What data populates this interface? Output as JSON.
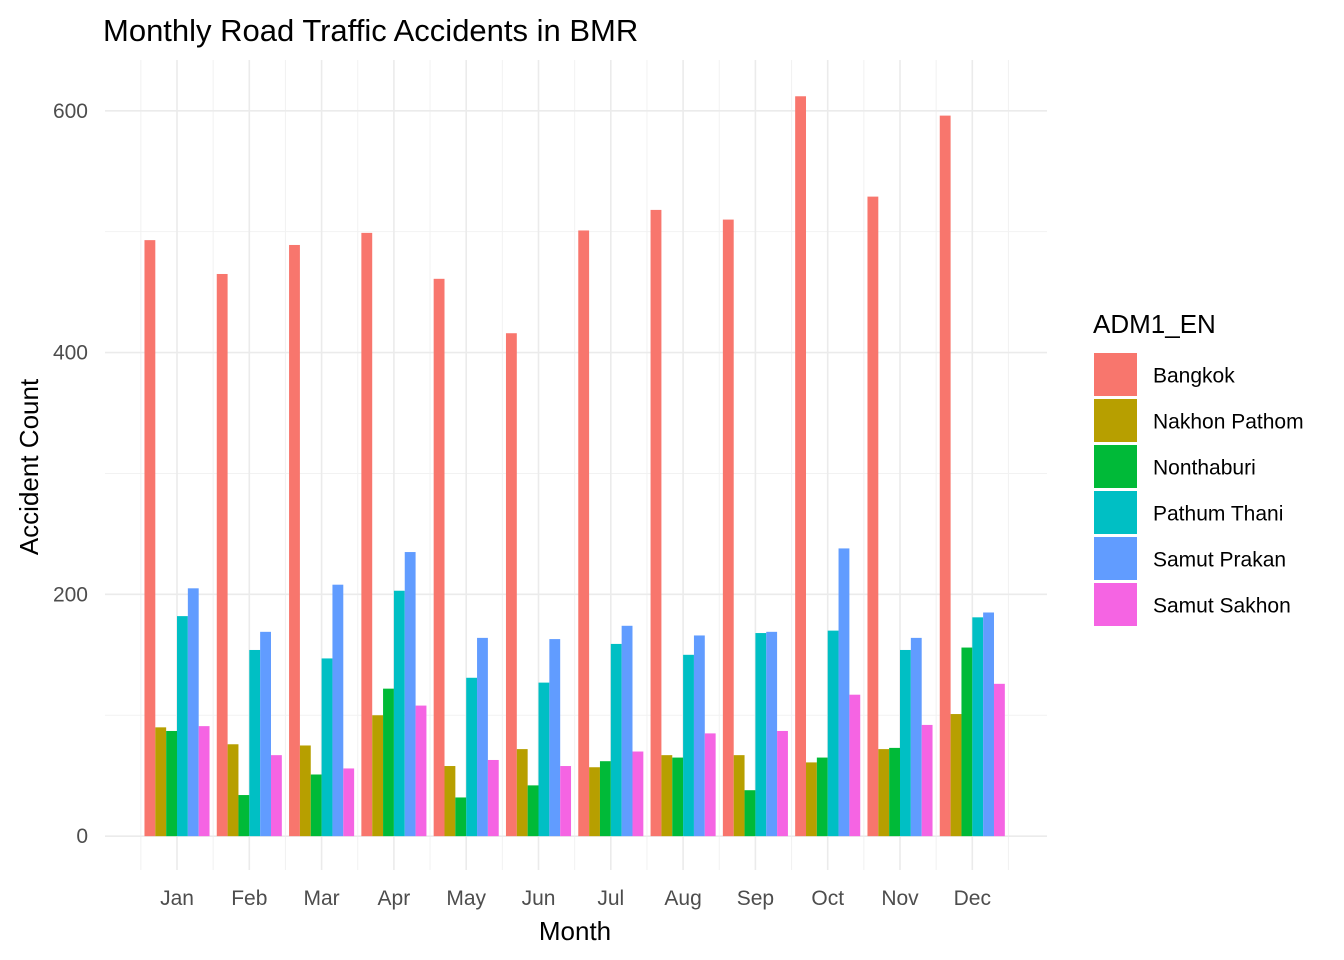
{
  "chart_data": {
    "type": "bar",
    "title": "Monthly Road Traffic Accidents in BMR",
    "xlabel": "Month",
    "ylabel": "Accident Count",
    "ylim": [
      -28,
      642
    ],
    "yticks": [
      0,
      200,
      400,
      600
    ],
    "grid": true,
    "legend": {
      "title": "ADM1_EN",
      "position": "right"
    },
    "categories": [
      "Jan",
      "Feb",
      "Mar",
      "Apr",
      "May",
      "Jun",
      "Jul",
      "Aug",
      "Sep",
      "Oct",
      "Nov",
      "Dec"
    ],
    "series": [
      {
        "name": "Bangkok",
        "color": "#F8766D",
        "values": [
          493,
          465,
          489,
          499,
          461,
          416,
          501,
          518,
          510,
          612,
          529,
          596
        ]
      },
      {
        "name": "Nakhon Pathom",
        "color": "#B79F00",
        "values": [
          90,
          76,
          75,
          100,
          58,
          72,
          57,
          67,
          67,
          61,
          72,
          101
        ]
      },
      {
        "name": "Nonthaburi",
        "color": "#00BA38",
        "values": [
          87,
          34,
          51,
          122,
          32,
          42,
          62,
          65,
          38,
          65,
          73,
          156
        ]
      },
      {
        "name": "Pathum Thani",
        "color": "#00BFC4",
        "values": [
          182,
          154,
          147,
          203,
          131,
          127,
          159,
          150,
          168,
          170,
          154,
          181
        ]
      },
      {
        "name": "Samut Prakan",
        "color": "#619CFF",
        "values": [
          205,
          169,
          208,
          235,
          164,
          163,
          174,
          166,
          169,
          238,
          164,
          185
        ]
      },
      {
        "name": "Samut Sakhon",
        "color": "#F564E3",
        "values": [
          91,
          67,
          56,
          108,
          63,
          58,
          70,
          85,
          87,
          117,
          92,
          126
        ]
      }
    ]
  }
}
